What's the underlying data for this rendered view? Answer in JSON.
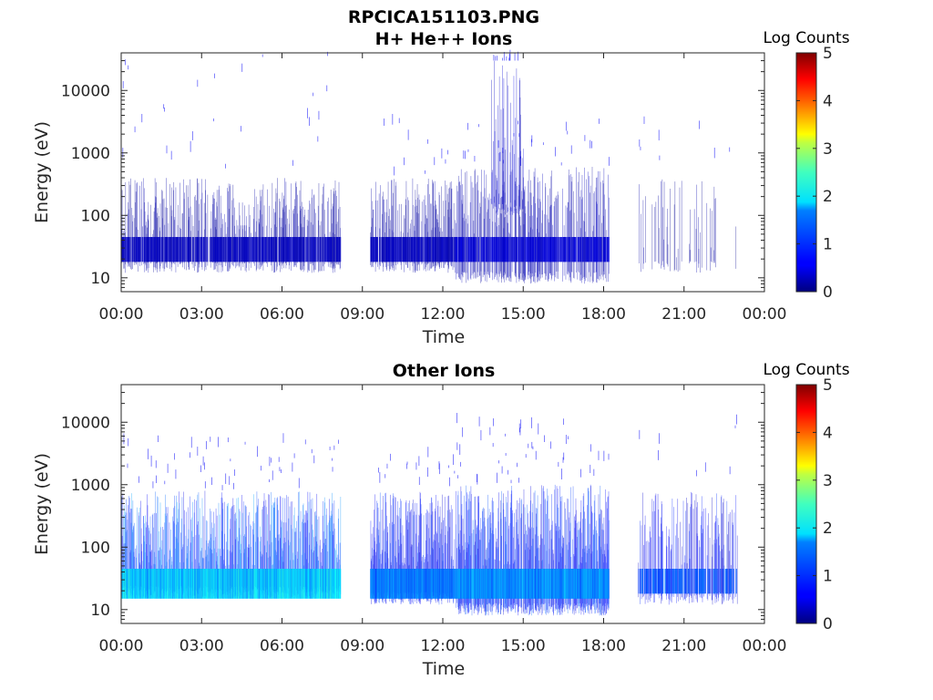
{
  "figure_title": "RPCICA151103.PNG",
  "chart_data": [
    {
      "type": "heatmap",
      "title": "H+ He++ Ions",
      "xlabel": "Time",
      "ylabel": "Energy (eV)",
      "x_ticks": [
        "00:00",
        "03:00",
        "06:00",
        "09:00",
        "12:00",
        "15:00",
        "18:00",
        "21:00",
        "00:00"
      ],
      "x_range_hours": [
        0,
        24
      ],
      "y_scale": "log",
      "y_ticks": [
        "10",
        "100",
        "1000",
        "10000"
      ],
      "y_range": [
        6,
        40000
      ],
      "colorbar": {
        "label": "Log Counts",
        "ticks": [
          "0",
          "1",
          "2",
          "3",
          "4",
          "5"
        ],
        "range": [
          0,
          5
        ],
        "colormap": "jet"
      },
      "data_gaps_hours": [
        [
          8.2,
          9.3
        ],
        [
          18.2,
          19.3
        ],
        [
          23.0,
          24
        ]
      ],
      "bursts": [
        {
          "t_start": 0.0,
          "t_end": 8.2,
          "e_low": 12,
          "e_high": 400,
          "band_low": 18,
          "band_high": 45,
          "level": 0.3,
          "density": 0.45,
          "sparse_top": 40000,
          "sparse_density": 0.05
        },
        {
          "t_start": 9.3,
          "t_end": 12.5,
          "e_low": 12,
          "e_high": 400,
          "band_low": 18,
          "band_high": 45,
          "level": 0.3,
          "density": 0.5,
          "sparse_top": 3000,
          "sparse_density": 0.04
        },
        {
          "t_start": 12.5,
          "t_end": 18.2,
          "e_low": 8,
          "e_high": 600,
          "band_low": 18,
          "band_high": 45,
          "level": 0.4,
          "density": 0.5,
          "sparse_top": 3000,
          "sparse_density": 0.05
        },
        {
          "t_start": 13.8,
          "t_end": 15.0,
          "e_low": 100,
          "e_high": 30000,
          "band_low": 100,
          "band_high": 100,
          "level": 0.6,
          "density": 0.35,
          "sparse_top": 30000,
          "sparse_density": 0.1
        },
        {
          "t_start": 19.3,
          "t_end": 23.0,
          "e_low": 12,
          "e_high": 400,
          "band_low": 18,
          "band_high": 18,
          "level": 0.25,
          "density": 0.15,
          "sparse_top": 3000,
          "sparse_density": 0.02
        }
      ]
    },
    {
      "type": "heatmap",
      "title": "Other Ions",
      "xlabel": "Time",
      "ylabel": "Energy (eV)",
      "x_ticks": [
        "00:00",
        "03:00",
        "06:00",
        "09:00",
        "12:00",
        "15:00",
        "18:00",
        "21:00",
        "00:00"
      ],
      "x_range_hours": [
        0,
        24
      ],
      "y_scale": "log",
      "y_ticks": [
        "10",
        "100",
        "1000",
        "10000"
      ],
      "y_range": [
        6,
        40000
      ],
      "colorbar": {
        "label": "Log Counts",
        "ticks": [
          "0",
          "1",
          "2",
          "3",
          "4",
          "5"
        ],
        "range": [
          0,
          5
        ],
        "colormap": "jet"
      },
      "data_gaps_hours": [
        [
          8.2,
          9.3
        ],
        [
          18.2,
          19.3
        ],
        [
          23.0,
          24
        ]
      ],
      "bursts": [
        {
          "t_start": 0.0,
          "t_end": 8.2,
          "e_low": 15,
          "e_high": 800,
          "band_low": 15,
          "band_high": 45,
          "level": 1.6,
          "density": 0.75,
          "sparse_top": 5000,
          "sparse_density": 0.08
        },
        {
          "t_start": 9.3,
          "t_end": 12.5,
          "e_low": 12,
          "e_high": 800,
          "band_low": 15,
          "band_high": 45,
          "level": 1.2,
          "density": 0.75,
          "sparse_top": 3000,
          "sparse_density": 0.06
        },
        {
          "t_start": 12.5,
          "t_end": 18.2,
          "e_low": 8,
          "e_high": 1000,
          "band_low": 15,
          "band_high": 45,
          "level": 1.3,
          "density": 0.8,
          "sparse_top": 10000,
          "sparse_density": 0.1
        },
        {
          "t_start": 19.3,
          "t_end": 23.0,
          "e_low": 12,
          "e_high": 800,
          "band_low": 18,
          "band_high": 45,
          "level": 1.0,
          "density": 0.35,
          "sparse_top": 10000,
          "sparse_density": 0.03
        }
      ]
    }
  ]
}
